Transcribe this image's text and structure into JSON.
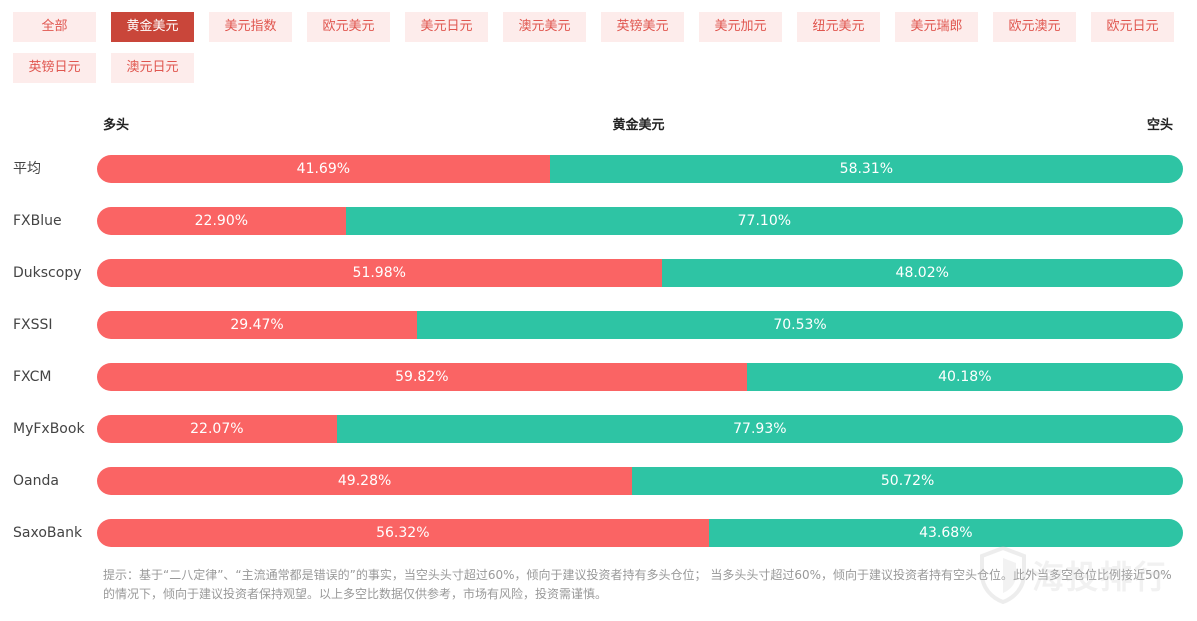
{
  "tabs": [
    {
      "label": "全部",
      "active": false
    },
    {
      "label": "黄金美元",
      "active": true
    },
    {
      "label": "美元指数",
      "active": false
    },
    {
      "label": "欧元美元",
      "active": false
    },
    {
      "label": "美元日元",
      "active": false
    },
    {
      "label": "澳元美元",
      "active": false
    },
    {
      "label": "英镑美元",
      "active": false
    },
    {
      "label": "美元加元",
      "active": false
    },
    {
      "label": "纽元美元",
      "active": false
    },
    {
      "label": "美元瑞郎",
      "active": false
    },
    {
      "label": "欧元澳元",
      "active": false
    },
    {
      "label": "欧元日元",
      "active": false
    },
    {
      "label": "英镑日元",
      "active": false
    },
    {
      "label": "澳元日元",
      "active": false
    }
  ],
  "chart_data": {
    "type": "bar",
    "title": "黄金美元",
    "long_label": "多头",
    "short_label": "空头",
    "colors": {
      "long": "#fa6464",
      "short": "#2ec4a4"
    },
    "categories": [
      "平均",
      "FXBlue",
      "Dukscopy",
      "FXSSI",
      "FXCM",
      "MyFxBook",
      "Oanda",
      "SaxoBank"
    ],
    "series": [
      {
        "name": "多头",
        "values": [
          41.69,
          22.9,
          51.98,
          29.47,
          59.82,
          22.07,
          49.28,
          56.32
        ]
      },
      {
        "name": "空头",
        "values": [
          58.31,
          77.1,
          48.02,
          70.53,
          40.18,
          77.93,
          50.72,
          43.68
        ]
      }
    ],
    "value_labels": {
      "long": [
        "41.69%",
        "22.90%",
        "51.98%",
        "29.47%",
        "59.82%",
        "22.07%",
        "49.28%",
        "56.32%"
      ],
      "short": [
        "58.31%",
        "77.10%",
        "48.02%",
        "70.53%",
        "40.18%",
        "77.93%",
        "50.72%",
        "43.68%"
      ]
    }
  },
  "note": "提示：基于“二八定律”、“主流通常都是错误的”的事实，当空头头寸超过60%，倾向于建议投资者持有多头仓位； 当多头头寸超过60%，倾向于建议投资者持有空头仓位。此外当多空仓位比例接近50%的情况下，倾向于建议投资者保持观望。以上多空比数据仅供参考，市场有风险，投资需谨慎。",
  "watermark": {
    "text": "海投排行",
    "icon": "shield-logo-icon"
  }
}
